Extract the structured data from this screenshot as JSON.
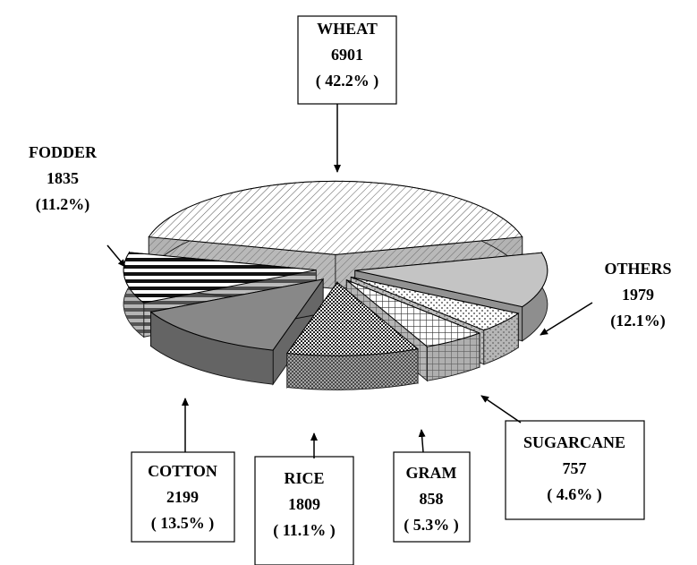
{
  "chart_data": {
    "type": "pie3d",
    "categories": [
      "WHEAT",
      "OTHERS",
      "SUGARCANE",
      "GRAM",
      "RICE",
      "COTTON",
      "FODDER"
    ],
    "values": [
      6901,
      1979,
      757,
      858,
      1809,
      2199,
      1835
    ],
    "percent_labels": [
      "( 42.2% )",
      "(12.1%)",
      "( 4.6% )",
      "( 5.3% )",
      "( 11.1% )",
      "( 13.5% )",
      "(11.2%)"
    ],
    "colors": [
      "#e8e8e8",
      "#c0c0c0",
      "#f4f4f4",
      "#dcdcdc",
      "#bdbdbd",
      "#8c8c8c",
      "#f0f0f0"
    ]
  }
}
